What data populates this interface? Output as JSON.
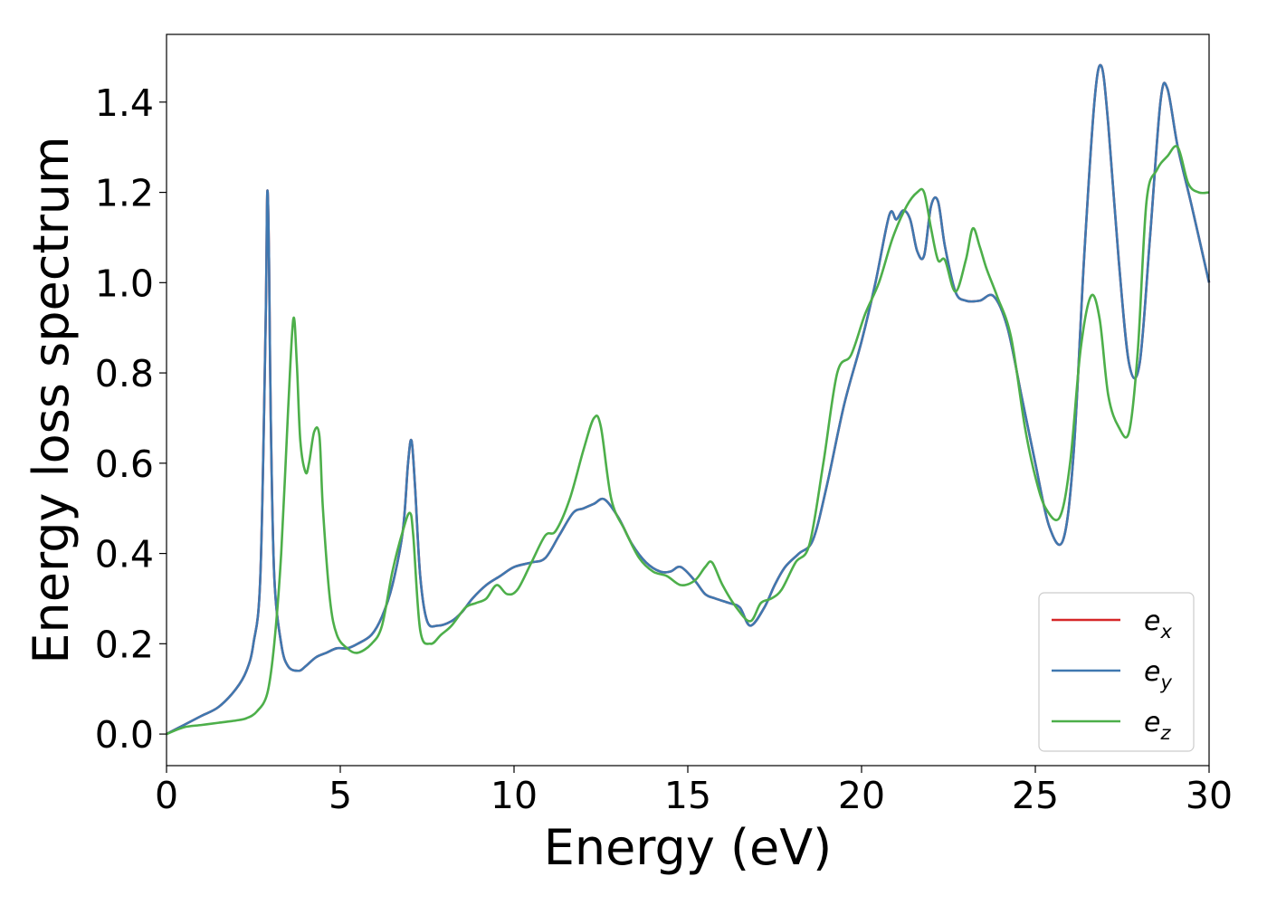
{
  "chart_data": {
    "type": "line",
    "xlabel": "Energy (eV)",
    "ylabel": "Energy loss spectrum",
    "xlim": [
      0,
      30
    ],
    "ylim": [
      -0.07,
      1.55
    ],
    "xticks": [
      0,
      5,
      10,
      15,
      20,
      25,
      30
    ],
    "xtick_labels": [
      "0",
      "5",
      "10",
      "15",
      "20",
      "25",
      "30"
    ],
    "yticks": [
      0.0,
      0.2,
      0.4,
      0.6,
      0.8,
      1.0,
      1.2,
      1.4
    ],
    "ytick_labels": [
      "0.0",
      "0.2",
      "0.4",
      "0.6",
      "0.8",
      "1.0",
      "1.2",
      "1.4"
    ],
    "grid": false,
    "legend_position": "bottom-right",
    "series": [
      {
        "name": "e_x",
        "label_base": "e",
        "label_sub": "x",
        "color": "#d62728",
        "x": [
          0,
          0.5,
          1,
          1.5,
          2,
          2.3,
          2.5,
          2.7,
          2.85,
          2.9,
          2.95,
          3.0,
          3.1,
          3.3,
          3.5,
          3.8,
          4.0,
          4.3,
          4.6,
          4.9,
          5.2,
          5.5,
          5.9,
          6.2,
          6.5,
          6.8,
          6.95,
          7.05,
          7.15,
          7.3,
          7.5,
          7.8,
          8.2,
          8.5,
          8.8,
          9.2,
          9.6,
          10,
          10.5,
          10.9,
          11.3,
          11.7,
          12.0,
          12.3,
          12.6,
          13.0,
          13.4,
          13.8,
          14.2,
          14.5,
          14.8,
          15.2,
          15.5,
          15.8,
          16.2,
          16.5,
          16.8,
          17.2,
          17.5,
          17.8,
          18.2,
          18.6,
          19.0,
          19.5,
          20.0,
          20.4,
          20.8,
          21.0,
          21.2,
          21.4,
          21.6,
          21.8,
          22.0,
          22.2,
          22.4,
          22.7,
          23.0,
          23.4,
          23.8,
          24.2,
          24.6,
          25.0,
          25.4,
          25.8,
          26.1,
          26.4,
          26.7,
          26.9,
          27.1,
          27.4,
          27.7,
          28.0,
          28.3,
          28.6,
          28.8,
          29.1,
          29.5,
          30
        ],
        "y": [
          0.0,
          0.02,
          0.04,
          0.06,
          0.1,
          0.14,
          0.2,
          0.35,
          0.9,
          1.2,
          1.05,
          0.7,
          0.35,
          0.2,
          0.15,
          0.14,
          0.15,
          0.17,
          0.18,
          0.19,
          0.19,
          0.2,
          0.22,
          0.26,
          0.33,
          0.45,
          0.6,
          0.65,
          0.55,
          0.35,
          0.25,
          0.24,
          0.25,
          0.27,
          0.3,
          0.33,
          0.35,
          0.37,
          0.38,
          0.39,
          0.44,
          0.49,
          0.5,
          0.51,
          0.52,
          0.48,
          0.42,
          0.38,
          0.36,
          0.36,
          0.37,
          0.34,
          0.31,
          0.3,
          0.29,
          0.28,
          0.24,
          0.28,
          0.33,
          0.37,
          0.4,
          0.43,
          0.55,
          0.73,
          0.87,
          1.0,
          1.15,
          1.14,
          1.16,
          1.14,
          1.07,
          1.06,
          1.17,
          1.18,
          1.08,
          0.98,
          0.96,
          0.96,
          0.97,
          0.9,
          0.75,
          0.6,
          0.46,
          0.43,
          0.62,
          1.05,
          1.4,
          1.48,
          1.35,
          1.05,
          0.82,
          0.82,
          1.1,
          1.4,
          1.43,
          1.3,
          1.17,
          1.0
        ]
      },
      {
        "name": "e_y",
        "label_base": "e",
        "label_sub": "y",
        "color": "#3f78b0",
        "x": [
          0,
          0.5,
          1,
          1.5,
          2,
          2.3,
          2.5,
          2.7,
          2.85,
          2.9,
          2.95,
          3.0,
          3.1,
          3.3,
          3.5,
          3.8,
          4.0,
          4.3,
          4.6,
          4.9,
          5.2,
          5.5,
          5.9,
          6.2,
          6.5,
          6.8,
          6.95,
          7.05,
          7.15,
          7.3,
          7.5,
          7.8,
          8.2,
          8.5,
          8.8,
          9.2,
          9.6,
          10,
          10.5,
          10.9,
          11.3,
          11.7,
          12.0,
          12.3,
          12.6,
          13.0,
          13.4,
          13.8,
          14.2,
          14.5,
          14.8,
          15.2,
          15.5,
          15.8,
          16.2,
          16.5,
          16.8,
          17.2,
          17.5,
          17.8,
          18.2,
          18.6,
          19.0,
          19.5,
          20.0,
          20.4,
          20.8,
          21.0,
          21.2,
          21.4,
          21.6,
          21.8,
          22.0,
          22.2,
          22.4,
          22.7,
          23.0,
          23.4,
          23.8,
          24.2,
          24.6,
          25.0,
          25.4,
          25.8,
          26.1,
          26.4,
          26.7,
          26.9,
          27.1,
          27.4,
          27.7,
          28.0,
          28.3,
          28.6,
          28.8,
          29.1,
          29.5,
          30
        ],
        "y": [
          0.0,
          0.02,
          0.04,
          0.06,
          0.1,
          0.14,
          0.2,
          0.35,
          0.9,
          1.2,
          1.05,
          0.7,
          0.35,
          0.2,
          0.15,
          0.14,
          0.15,
          0.17,
          0.18,
          0.19,
          0.19,
          0.2,
          0.22,
          0.26,
          0.33,
          0.45,
          0.6,
          0.65,
          0.55,
          0.35,
          0.25,
          0.24,
          0.25,
          0.27,
          0.3,
          0.33,
          0.35,
          0.37,
          0.38,
          0.39,
          0.44,
          0.49,
          0.5,
          0.51,
          0.52,
          0.48,
          0.42,
          0.38,
          0.36,
          0.36,
          0.37,
          0.34,
          0.31,
          0.3,
          0.29,
          0.28,
          0.24,
          0.28,
          0.33,
          0.37,
          0.4,
          0.43,
          0.55,
          0.73,
          0.87,
          1.0,
          1.15,
          1.14,
          1.16,
          1.14,
          1.07,
          1.06,
          1.17,
          1.18,
          1.08,
          0.98,
          0.96,
          0.96,
          0.97,
          0.9,
          0.75,
          0.6,
          0.46,
          0.43,
          0.62,
          1.05,
          1.4,
          1.48,
          1.35,
          1.05,
          0.82,
          0.82,
          1.1,
          1.4,
          1.43,
          1.3,
          1.17,
          1.0
        ]
      },
      {
        "name": "e_z",
        "label_base": "e",
        "label_sub": "z",
        "color": "#4daf4a",
        "x": [
          0,
          0.5,
          1,
          1.5,
          2,
          2.3,
          2.6,
          2.9,
          3.1,
          3.3,
          3.5,
          3.65,
          3.75,
          3.85,
          4.0,
          4.1,
          4.25,
          4.4,
          4.5,
          4.7,
          4.9,
          5.2,
          5.5,
          5.9,
          6.2,
          6.5,
          6.8,
          7.0,
          7.1,
          7.3,
          7.6,
          7.9,
          8.2,
          8.6,
          8.9,
          9.2,
          9.5,
          9.8,
          10.1,
          10.5,
          10.9,
          11.2,
          11.6,
          12.0,
          12.3,
          12.5,
          12.8,
          13.2,
          13.6,
          14.0,
          14.4,
          14.8,
          15.2,
          15.5,
          15.7,
          16.0,
          16.4,
          16.8,
          17.1,
          17.4,
          17.7,
          18.1,
          18.5,
          18.9,
          19.3,
          19.7,
          20.1,
          20.5,
          20.9,
          21.3,
          21.6,
          21.8,
          22.0,
          22.2,
          22.4,
          22.7,
          23.0,
          23.2,
          23.4,
          23.6,
          23.9,
          24.3,
          24.7,
          25.0,
          25.3,
          25.7,
          26.0,
          26.3,
          26.6,
          26.85,
          27.1,
          27.4,
          27.7,
          27.95,
          28.2,
          28.5,
          28.8,
          29.1,
          29.4,
          29.7,
          30
        ],
        "y": [
          0.0,
          0.015,
          0.02,
          0.025,
          0.03,
          0.035,
          0.05,
          0.09,
          0.2,
          0.4,
          0.72,
          0.92,
          0.82,
          0.65,
          0.58,
          0.6,
          0.67,
          0.66,
          0.5,
          0.3,
          0.22,
          0.19,
          0.18,
          0.2,
          0.24,
          0.36,
          0.45,
          0.49,
          0.44,
          0.23,
          0.2,
          0.22,
          0.24,
          0.28,
          0.29,
          0.3,
          0.33,
          0.31,
          0.32,
          0.38,
          0.44,
          0.45,
          0.52,
          0.63,
          0.7,
          0.68,
          0.52,
          0.45,
          0.39,
          0.36,
          0.35,
          0.33,
          0.34,
          0.37,
          0.38,
          0.33,
          0.28,
          0.25,
          0.29,
          0.3,
          0.32,
          0.38,
          0.42,
          0.6,
          0.8,
          0.84,
          0.93,
          1.0,
          1.1,
          1.17,
          1.2,
          1.2,
          1.12,
          1.05,
          1.05,
          0.98,
          1.05,
          1.12,
          1.08,
          1.03,
          0.97,
          0.88,
          0.68,
          0.57,
          0.5,
          0.48,
          0.6,
          0.85,
          0.97,
          0.92,
          0.75,
          0.68,
          0.67,
          0.85,
          1.18,
          1.25,
          1.28,
          1.3,
          1.22,
          1.2,
          1.2
        ]
      }
    ]
  }
}
